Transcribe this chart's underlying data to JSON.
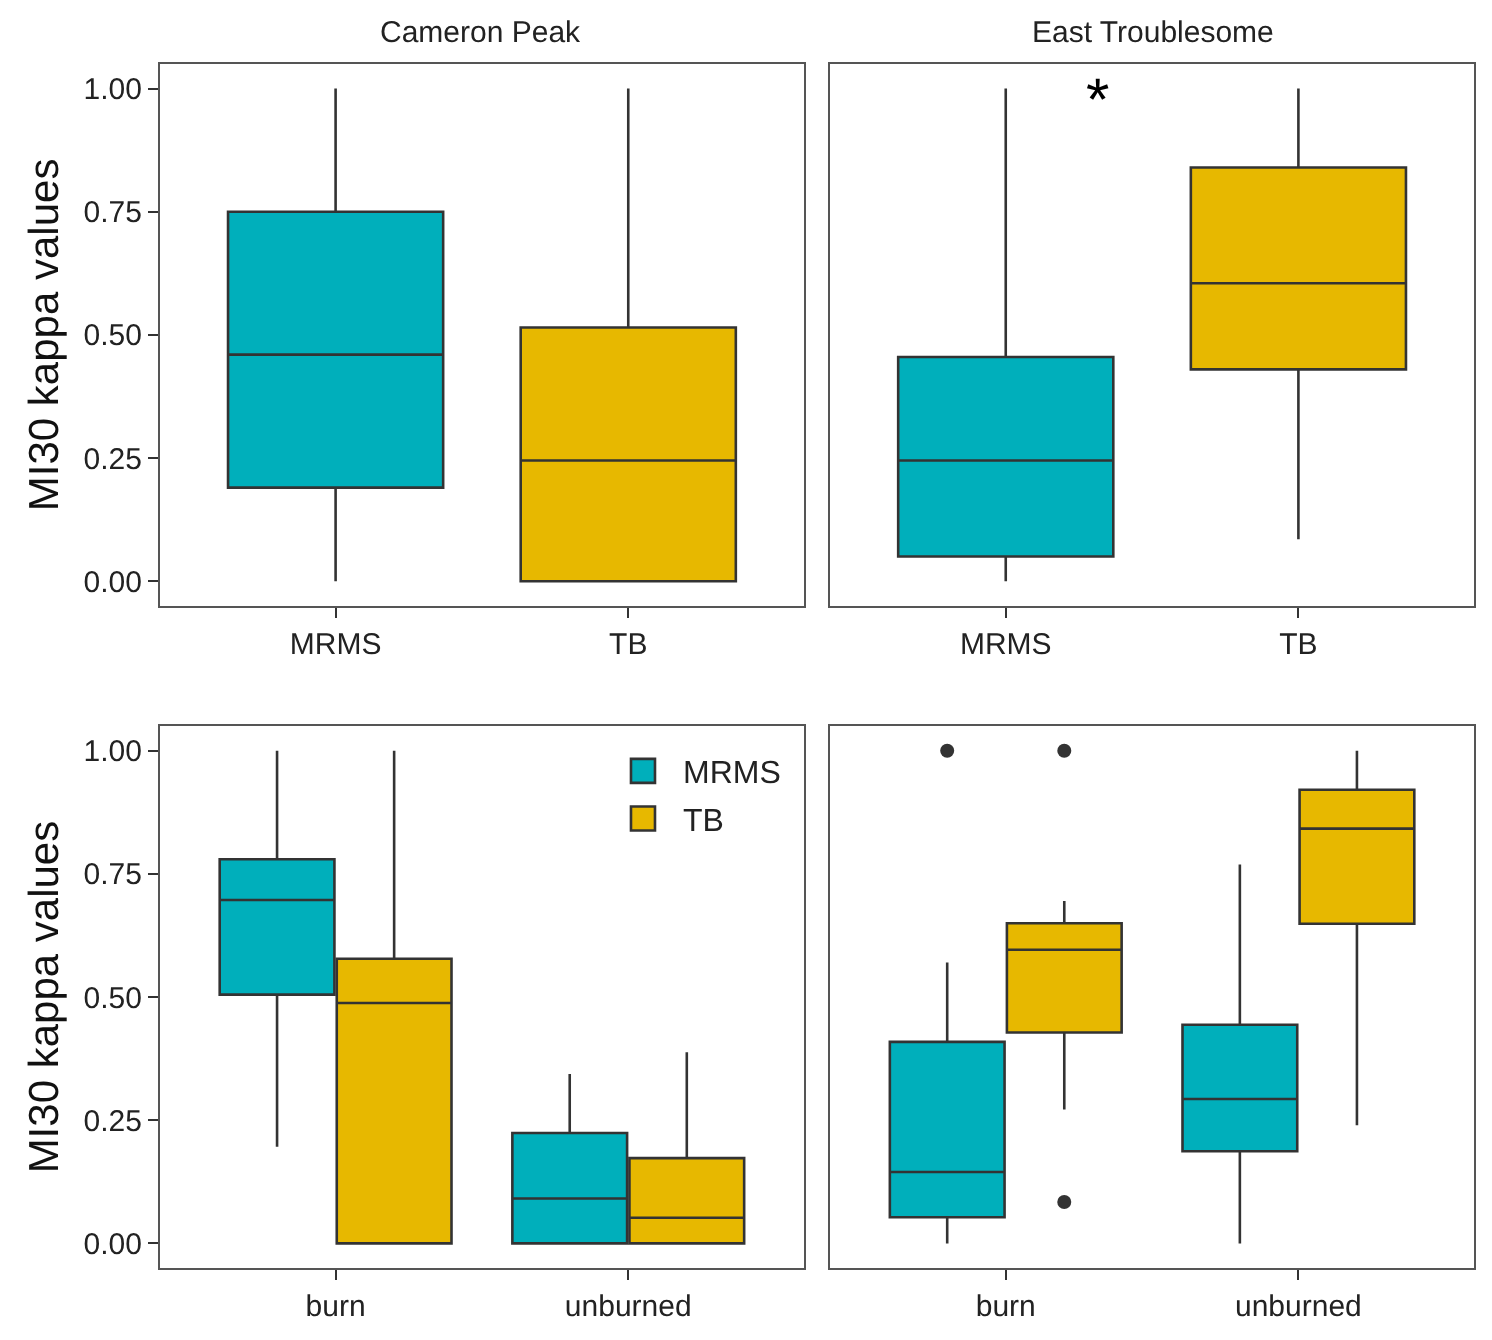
{
  "chart_data": [
    {
      "type": "box",
      "title": "Cameron Peak",
      "ylabel": "MI30 kappa values",
      "categories": [
        "MRMS",
        "TB"
      ],
      "colors": [
        "#00afbb",
        "#e7b800"
      ],
      "boxes": [
        {
          "low": 0,
          "q1": 0.19,
          "median": 0.46,
          "q3": 0.75,
          "high": 1
        },
        {
          "low": 0,
          "q1": 0,
          "median": 0.245,
          "q3": 0.515,
          "high": 1
        }
      ],
      "ylim": [
        -0.05,
        1.05
      ],
      "yticks": [
        {
          "value": 0,
          "label": "0.00"
        },
        {
          "value": 0.25,
          "label": "0.25"
        },
        {
          "value": 0.5,
          "label": "0.50"
        },
        {
          "value": 0.75,
          "label": "0.75"
        },
        {
          "value": 1,
          "label": "1.00"
        }
      ]
    },
    {
      "type": "box",
      "title": "East Troublesome",
      "categories": [
        "MRMS",
        "TB"
      ],
      "colors": [
        "#00afbb",
        "#e7b800"
      ],
      "boxes": [
        {
          "low": 0,
          "q1": 0.05,
          "median": 0.245,
          "q3": 0.455,
          "high": 1
        },
        {
          "low": 0.085,
          "q1": 0.43,
          "median": 0.605,
          "q3": 0.84,
          "high": 1
        }
      ],
      "annotations": [
        "*"
      ],
      "tick_labels": "x",
      "ylim": [
        -0.05,
        1.05
      ],
      "yticks": [
        {
          "value": 0,
          "label": null
        },
        {
          "value": 0.25,
          "label": null
        },
        {
          "value": 0.5,
          "label": null
        },
        {
          "value": 0.75,
          "label": null
        },
        {
          "value": 1,
          "label": null
        }
      ]
    },
    {
      "type": "box",
      "ylabel": "MI30 kappa values",
      "categories": [
        "burn",
        "unburned"
      ],
      "legend": "top right",
      "series": [
        {
          "name": "MRMS",
          "color": "#00afbb",
          "boxes": [
            {
              "low": 0.196,
              "q1": 0.505,
              "median": 0.697,
              "q3": 0.78,
              "high": 1
            },
            {
              "low": 0,
              "q1": 0,
              "median": 0.091,
              "q3": 0.224,
              "high": 0.344
            }
          ]
        },
        {
          "name": "TB",
          "color": "#e7b800",
          "boxes": [
            {
              "low": 0,
              "q1": 0,
              "median": 0.488,
              "q3": 0.578,
              "high": 1
            },
            {
              "low": 0,
              "q1": 0,
              "median": 0.052,
              "q3": 0.173,
              "high": 0.388
            }
          ]
        }
      ],
      "ylim": [
        -0.05,
        1.05
      ],
      "yticks": [
        {
          "value": 0,
          "label": "0.00"
        },
        {
          "value": 0.25,
          "label": "0.25"
        },
        {
          "value": 0.5,
          "label": "0.50"
        },
        {
          "value": 0.75,
          "label": "0.75"
        },
        {
          "value": 1,
          "label": "1.00"
        }
      ]
    },
    {
      "type": "box",
      "categories": [
        "burn",
        "unburned"
      ],
      "tick_labels": "x",
      "series": [
        {
          "color": "#00afbb",
          "boxes": [
            {
              "low": 0,
              "q1": 0.053,
              "median": 0.145,
              "q3": 0.409,
              "high": 0.57,
              "outliers": [
                1.0
              ]
            },
            {
              "low": 0,
              "q1": 0.187,
              "median": 0.293,
              "q3": 0.444,
              "high": 0.769
            }
          ]
        },
        {
          "color": "#e7b800",
          "boxes": [
            {
              "low": 0.272,
              "q1": 0.428,
              "median": 0.596,
              "q3": 0.65,
              "high": 0.695,
              "outliers": [
                1.0,
                0.084
              ]
            },
            {
              "low": 0.24,
              "q1": 0.649,
              "median": 0.842,
              "q3": 0.921,
              "high": 1.0
            }
          ]
        }
      ],
      "ylim": [
        -0.05,
        1.05
      ],
      "yticks": [
        {
          "value": 0,
          "label": null
        },
        {
          "value": 0.25,
          "label": null
        },
        {
          "value": 0.5,
          "label": null
        },
        {
          "value": 0.75,
          "label": null
        },
        {
          "value": 1,
          "label": null
        }
      ]
    }
  ]
}
